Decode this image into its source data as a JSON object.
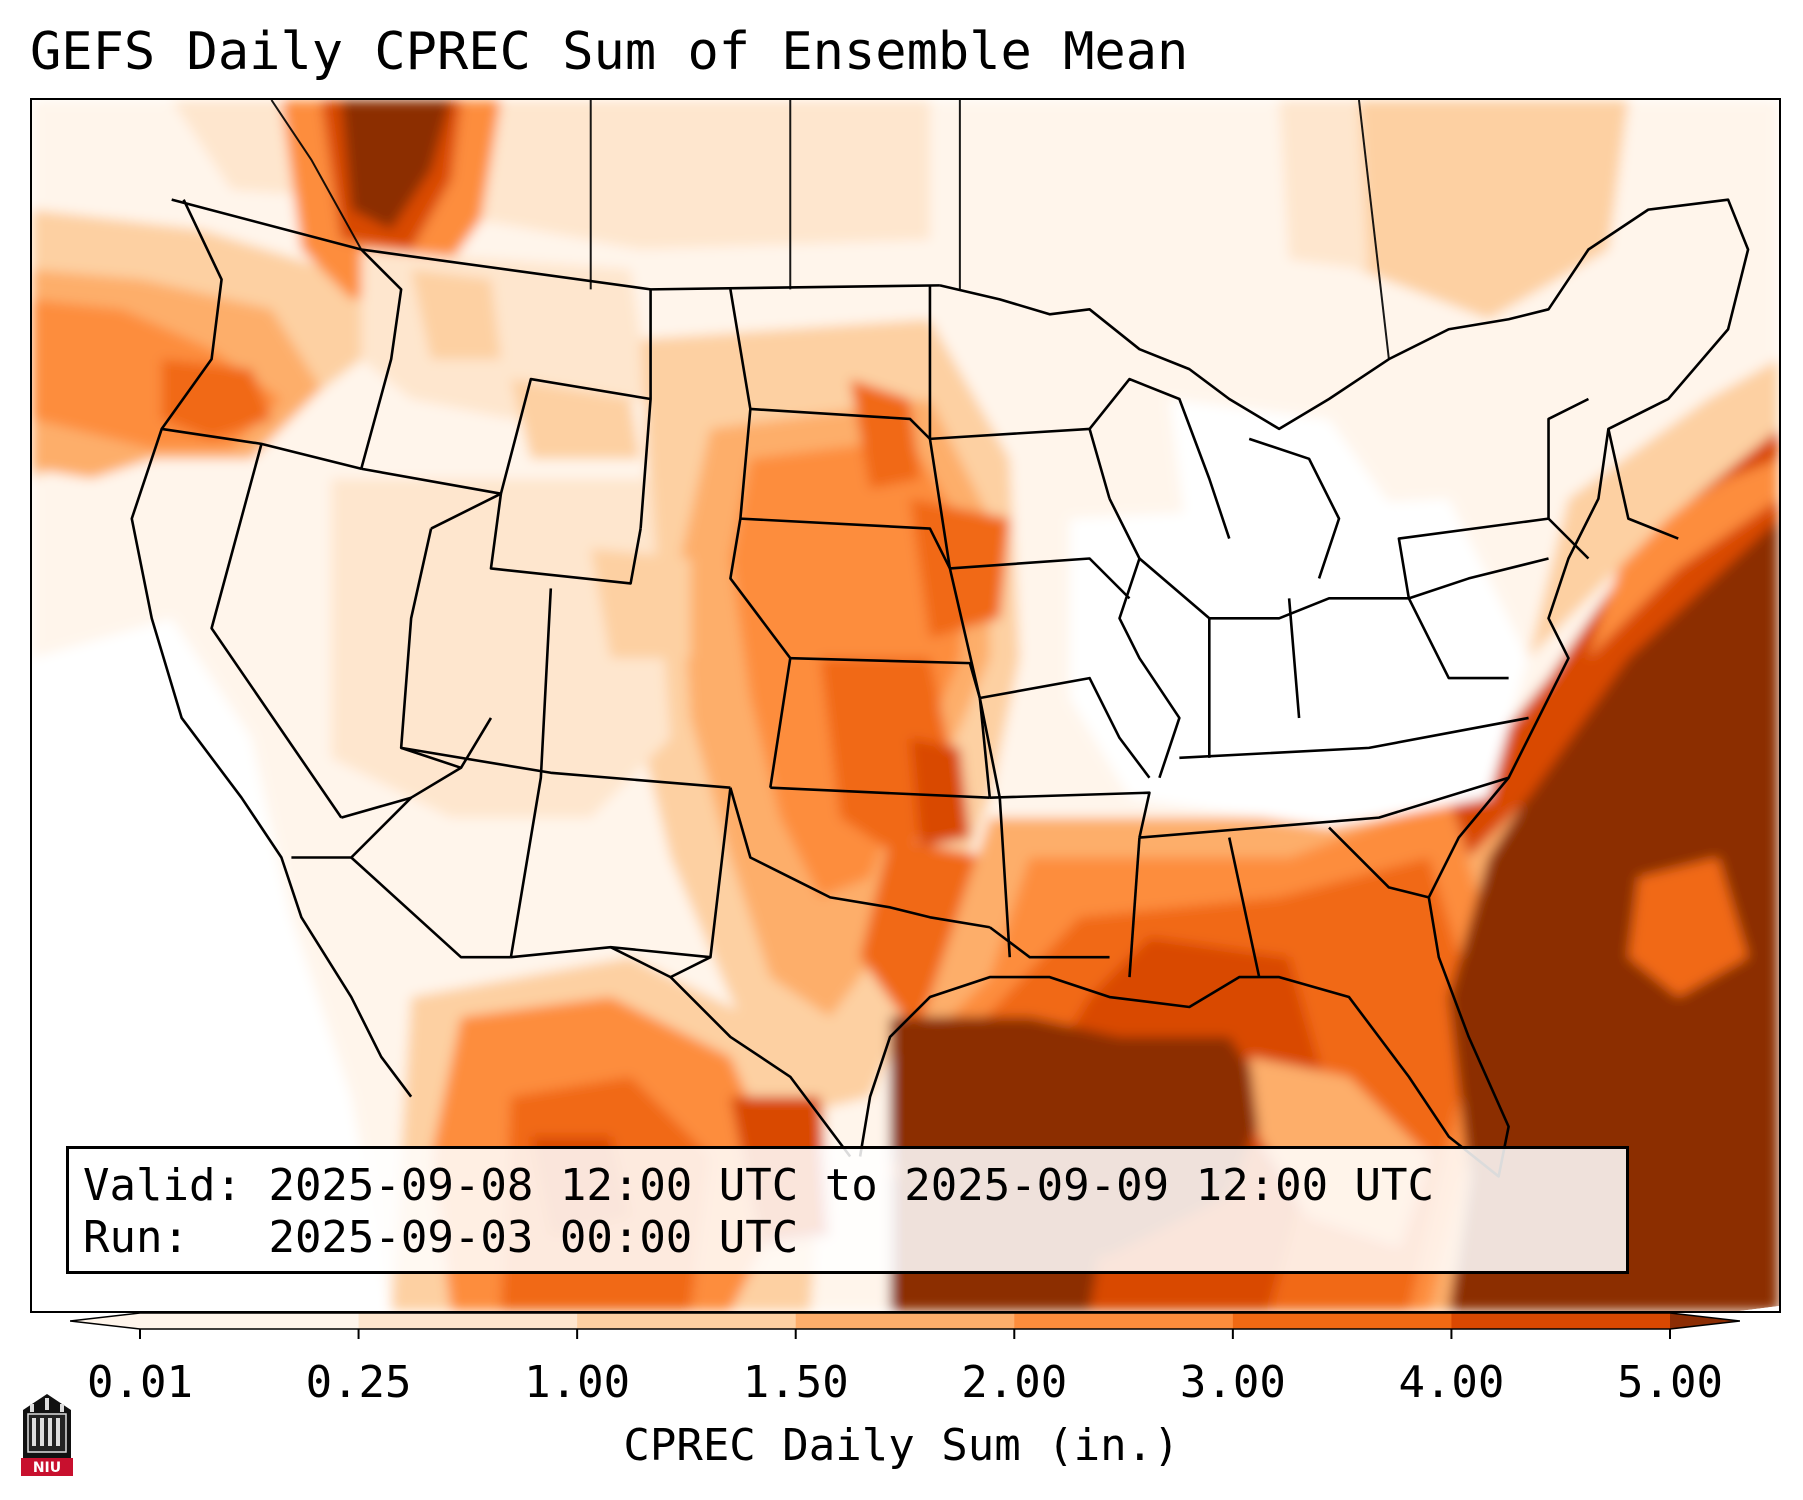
{
  "title": "GEFS Daily CPREC Sum of Ensemble Mean",
  "info": {
    "valid_label": "Valid:",
    "valid_value": "2025-09-08 12:00 UTC to 2025-09-09 12:00 UTC",
    "run_label": "Run:",
    "run_value": "2025-09-03 00:00 UTC"
  },
  "colorbar": {
    "label": "CPREC Daily Sum (in.)",
    "ticks": [
      "0.01",
      "0.25",
      "1.00",
      "1.50",
      "2.00",
      "3.00",
      "4.00",
      "5.00"
    ],
    "colors": [
      "#fff5eb",
      "#fee6ce",
      "#fdd0a2",
      "#fdae6b",
      "#fd8d3c",
      "#f16913",
      "#d94801",
      "#8c2d04"
    ],
    "extend": "both"
  },
  "logo": {
    "text": "NIU",
    "icon": "niu-logo-icon",
    "color": "#c8102e"
  },
  "map": {
    "region": "Contiguous United States",
    "projection": "lambert-conformal",
    "colors_used": [
      "#fff5eb",
      "#fee6ce",
      "#fdd0a2",
      "#fdae6b",
      "#fd8d3c",
      "#f16913",
      "#d94801",
      "#8c2d04"
    ]
  }
}
